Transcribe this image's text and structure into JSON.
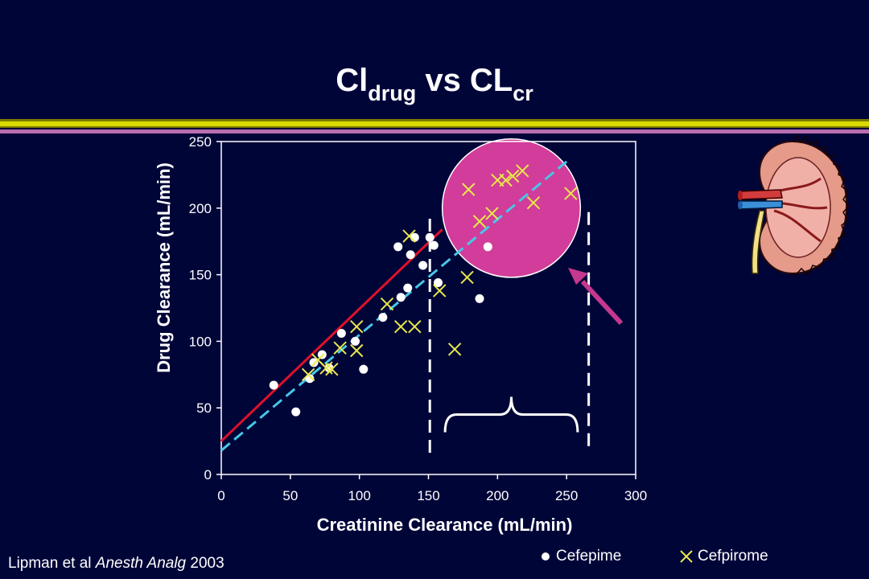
{
  "slide": {
    "title_main_a": "Cl",
    "title_sub_a": "drug",
    "title_mid": " vs CL",
    "title_sub_b": "cr",
    "citation_authors": "Lipman et al ",
    "citation_journal": "Anesth Analg",
    "citation_year": " 2003",
    "colors": {
      "background": "#000538",
      "band_yellow": "#d7d900",
      "band_olive": "#7d7a00",
      "band_purple": "#b76fb0",
      "highlight": "#d23c9a",
      "arrow": "#c5388f"
    }
  },
  "chart_data": {
    "type": "scatter",
    "xlabel": "Creatinine Clearance (mL/min)",
    "ylabel": "Drug Clearance (mL/min)",
    "xlim": [
      0,
      300
    ],
    "ylim": [
      0,
      250
    ],
    "xticks": [
      0,
      50,
      100,
      150,
      200,
      250,
      300
    ],
    "yticks": [
      0,
      50,
      100,
      150,
      200,
      250
    ],
    "legend_position": "bottom-right",
    "series": [
      {
        "name": "Cefepime",
        "marker": "circle",
        "color": "#ffffff",
        "points": [
          [
            38,
            67
          ],
          [
            54,
            47
          ],
          [
            64,
            72
          ],
          [
            67,
            84
          ],
          [
            73,
            90
          ],
          [
            78,
            80
          ],
          [
            87,
            106
          ],
          [
            97,
            100
          ],
          [
            103,
            79
          ],
          [
            117,
            118
          ],
          [
            128,
            171
          ],
          [
            130,
            133
          ],
          [
            135,
            140
          ],
          [
            137,
            165
          ],
          [
            140,
            178
          ],
          [
            146,
            157
          ],
          [
            151,
            178
          ],
          [
            154,
            172
          ],
          [
            157,
            144
          ],
          [
            193,
            171
          ],
          [
            187,
            132
          ]
        ]
      },
      {
        "name": "Cefpirome",
        "marker": "x",
        "color": "#e8e84a",
        "points": [
          [
            63,
            75
          ],
          [
            70,
            86
          ],
          [
            76,
            80
          ],
          [
            80,
            79
          ],
          [
            86,
            95
          ],
          [
            98,
            93
          ],
          [
            98,
            111
          ],
          [
            120,
            128
          ],
          [
            130,
            111
          ],
          [
            136,
            179
          ],
          [
            140,
            111
          ],
          [
            158,
            138
          ],
          [
            169,
            94
          ],
          [
            178,
            148
          ],
          [
            179,
            214
          ],
          [
            187,
            190
          ],
          [
            196,
            196
          ],
          [
            200,
            221
          ],
          [
            206,
            221
          ],
          [
            211,
            224
          ],
          [
            218,
            228
          ],
          [
            226,
            204
          ],
          [
            253,
            211
          ]
        ]
      }
    ],
    "fit_lines": [
      {
        "color": "#e0102a",
        "style": "solid",
        "x": [
          0,
          160
        ],
        "y": [
          25,
          184
        ]
      },
      {
        "color": "#45c8e8",
        "style": "dashed",
        "x": [
          0,
          250
        ],
        "y": [
          18,
          235
        ]
      }
    ],
    "annotations": {
      "highlight_ellipse": {
        "cx": 210,
        "cy": 200,
        "rx": 50,
        "ry": 52
      },
      "vertical_dashed_lines": [
        {
          "x": 151,
          "y_range": [
            15,
            192
          ]
        },
        {
          "x": 266,
          "y_range": [
            18,
            197
          ]
        }
      ],
      "brace": {
        "x_range": [
          162,
          258
        ],
        "y": 45
      }
    }
  }
}
